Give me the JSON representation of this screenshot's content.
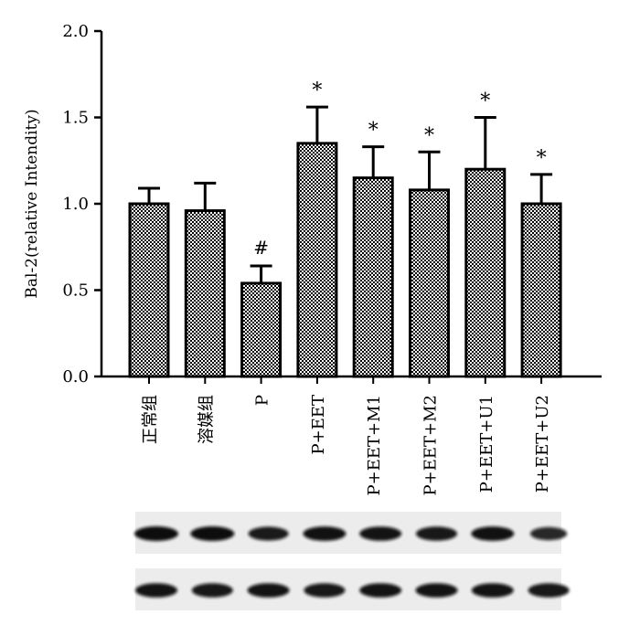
{
  "chart_data": {
    "type": "bar",
    "ylabel": "Bal-2(relative Intendity)",
    "xlabel": "",
    "ylim": [
      0,
      2.0
    ],
    "yticks": [
      "0.0",
      "0.5",
      "1.0",
      "1.5",
      "2.0"
    ],
    "categories": [
      "正常组",
      "溶媒组",
      "P",
      "P+EET",
      "P+EET+M1",
      "P+EET+M2",
      "P+EET+U1",
      "P+EET+U2"
    ],
    "values": [
      1.0,
      0.96,
      0.54,
      1.35,
      1.15,
      1.08,
      1.2,
      1.0
    ],
    "errors": [
      0.09,
      0.16,
      0.1,
      0.21,
      0.18,
      0.22,
      0.3,
      0.17
    ],
    "annotations": [
      "",
      "",
      "#",
      "*",
      "*",
      "*",
      "*",
      "*"
    ],
    "bar_fill": "checkered",
    "grid": false,
    "western_blot": {
      "bands_top": [
        1.0,
        1.0,
        0.8,
        0.95,
        0.9,
        0.85,
        0.95,
        0.6
      ],
      "bands_bottom": [
        0.9,
        0.85,
        0.9,
        0.85,
        0.9,
        0.9,
        0.9,
        0.85
      ]
    }
  }
}
